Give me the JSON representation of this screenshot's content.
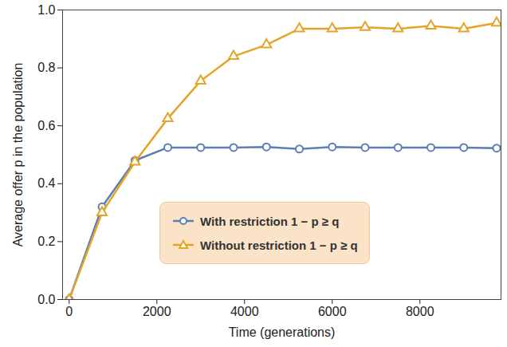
{
  "chart_data": {
    "type": "line",
    "xlabel": "Time (generations)",
    "ylabel": "Average offer p in the population",
    "x": [
      0,
      750,
      1500,
      2250,
      3000,
      3750,
      4500,
      5250,
      6000,
      6750,
      7500,
      8250,
      9000,
      9750
    ],
    "series": [
      {
        "name": "With restriction 1 − p ≥ q",
        "color": "#5b7fb5",
        "marker": "circle",
        "values": [
          0,
          0.32,
          0.48,
          0.525,
          0.525,
          0.525,
          0.527,
          0.52,
          0.527,
          0.525,
          0.525,
          0.525,
          0.525,
          0.523
        ]
      },
      {
        "name": "Without restriction 1 − p ≥ q",
        "color": "#e4a428",
        "marker": "triangle",
        "values": [
          0,
          0.3,
          0.475,
          0.625,
          0.755,
          0.84,
          0.88,
          0.935,
          0.935,
          0.94,
          0.935,
          0.945,
          0.935,
          0.955
        ]
      }
    ],
    "xlim": [
      -150,
      9850
    ],
    "xticks": [
      0,
      2000,
      4000,
      6000,
      8000
    ],
    "ylim": [
      0,
      1.0
    ],
    "yticks": [
      {
        "value": 0,
        "label": "0.0"
      },
      {
        "value": 0.2,
        "label": "0.2"
      },
      {
        "value": 0.4,
        "label": "0.4"
      },
      {
        "value": 0.6,
        "label": "0.6"
      },
      {
        "value": 0.8,
        "label": "0.8"
      },
      {
        "value": 1.0,
        "label": "1.0"
      }
    ],
    "legend": "bottom",
    "grid": false
  }
}
